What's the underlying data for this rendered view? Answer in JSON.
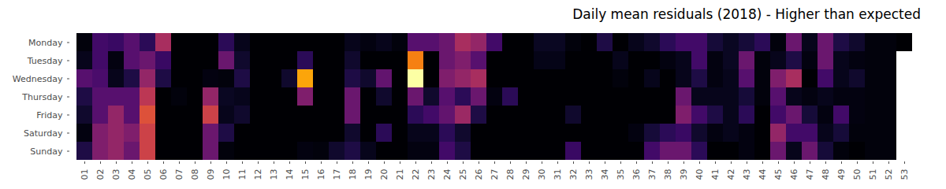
{
  "chart_data": {
    "type": "heatmap",
    "title": "Daily mean residuals (2018) - Higher than expected",
    "x": [
      "01",
      "02",
      "03",
      "04",
      "05",
      "06",
      "07",
      "08",
      "09",
      "10",
      "11",
      "12",
      "13",
      "14",
      "15",
      "16",
      "17",
      "18",
      "19",
      "20",
      "21",
      "22",
      "23",
      "24",
      "25",
      "26",
      "27",
      "28",
      "29",
      "30",
      "31",
      "32",
      "33",
      "34",
      "35",
      "36",
      "37",
      "38",
      "39",
      "40",
      "41",
      "42",
      "43",
      "44",
      "45",
      "46",
      "47",
      "48",
      "49",
      "50",
      "51",
      "52",
      "53"
    ],
    "y": [
      "Monday",
      "Tuesday",
      "Wednesday",
      "Thursday",
      "Friday",
      "Saturday",
      "Sunday"
    ],
    "color": "inferno",
    "values": [
      [
        0.02,
        0.2,
        0.18,
        0.25,
        0.15,
        0.45,
        0,
        0,
        0,
        0.15,
        0.05,
        0,
        0,
        0,
        0,
        0,
        0,
        0.05,
        0.03,
        0.05,
        0.02,
        0.25,
        0.25,
        0.3,
        0.45,
        0.4,
        0.2,
        0,
        0,
        0.06,
        0.06,
        0.02,
        0,
        0.12,
        0,
        0.05,
        0.08,
        0.15,
        0.2,
        0.2,
        0.1,
        0.06,
        0.1,
        0.15,
        0.02,
        0.3,
        0.05,
        0.3,
        0.12,
        0.08,
        0.02,
        0.02,
        0
      ],
      [
        0.05,
        0.2,
        0.03,
        0.25,
        0.3,
        0.18,
        0,
        0,
        0,
        0.3,
        0.08,
        0,
        0,
        0,
        0.15,
        0,
        0,
        0.08,
        0,
        0,
        0,
        0.72,
        0,
        0.3,
        0.35,
        0.25,
        0,
        0,
        0,
        0.04,
        0.04,
        0,
        0,
        0,
        0.05,
        0,
        0,
        0.03,
        0.05,
        0.2,
        0.03,
        0.06,
        0.3,
        0.02,
        0.05,
        0.12,
        0.03,
        0.3,
        0.05,
        0.03,
        0.02,
        0.02,
        null
      ],
      [
        0.25,
        0.22,
        0.05,
        0.12,
        0.4,
        0.12,
        0,
        0,
        0.03,
        0.02,
        0.12,
        0,
        0,
        0.08,
        0.8,
        0,
        0,
        0.12,
        0.08,
        0.28,
        0,
        1,
        0,
        0.35,
        0.4,
        0.45,
        0,
        0,
        0,
        0,
        0,
        0,
        0,
        0,
        0.02,
        0,
        0.05,
        0,
        0.05,
        0.12,
        0.03,
        0.05,
        0.25,
        0.02,
        0.35,
        0.45,
        0,
        0.2,
        0.05,
        0.08,
        0.02,
        0.02,
        null
      ],
      [
        0.12,
        0.25,
        0.25,
        0.25,
        0.5,
        0,
        0.02,
        0,
        0.4,
        0.06,
        0.05,
        0,
        0,
        0,
        0.35,
        0,
        0,
        0.3,
        0,
        0.08,
        0,
        0.3,
        0.08,
        0.25,
        0.15,
        0.3,
        0.03,
        0.15,
        0,
        0,
        0,
        0,
        0,
        0,
        0,
        0,
        0,
        0,
        0.3,
        0.05,
        0.05,
        0.05,
        0.1,
        0.02,
        0.25,
        0.05,
        0.03,
        0.05,
        0.03,
        0.03,
        0.02,
        0.02,
        null
      ],
      [
        0.08,
        0.25,
        0.4,
        0.25,
        0.6,
        0,
        0,
        0,
        0.55,
        0.05,
        0.08,
        0,
        0,
        0,
        0,
        0,
        0,
        0.3,
        0,
        0,
        0,
        0.15,
        0.2,
        0.28,
        0.42,
        0.12,
        0,
        0,
        0,
        0,
        0,
        0.08,
        0,
        0,
        0,
        0,
        0,
        0,
        0.35,
        0.2,
        0.12,
        0.05,
        0.15,
        0,
        0.2,
        0.3,
        0.1,
        0.03,
        0.2,
        0.03,
        0.02,
        0.02,
        null
      ],
      [
        0.03,
        0.35,
        0.4,
        0.35,
        0.55,
        0,
        0,
        0,
        0.3,
        0.12,
        0,
        0,
        0,
        0,
        0,
        0,
        0,
        0.08,
        0,
        0.15,
        0,
        0.05,
        0.05,
        0.15,
        0.08,
        0,
        0,
        0,
        0,
        0,
        0,
        0,
        0,
        0,
        0,
        0.03,
        0.1,
        0.15,
        0.18,
        0.08,
        0.03,
        0.05,
        0.03,
        0,
        0.4,
        0.2,
        0.2,
        0.05,
        0.1,
        0.02,
        0.02,
        0.02,
        null
      ],
      [
        0.12,
        0.35,
        0.4,
        0.3,
        0.55,
        0,
        0,
        0,
        0.3,
        0.02,
        0,
        0,
        0,
        0,
        0.03,
        0.02,
        0.08,
        0.12,
        0.05,
        0,
        0,
        0.03,
        0.03,
        0.2,
        0.12,
        0,
        0,
        0,
        0,
        0,
        0,
        0.18,
        0,
        0,
        0,
        0,
        0.2,
        0.3,
        0.3,
        0.15,
        0,
        0,
        0.03,
        0,
        0.3,
        0.05,
        0.3,
        0.1,
        0.02,
        0,
        0.02,
        0.02,
        null
      ]
    ]
  }
}
